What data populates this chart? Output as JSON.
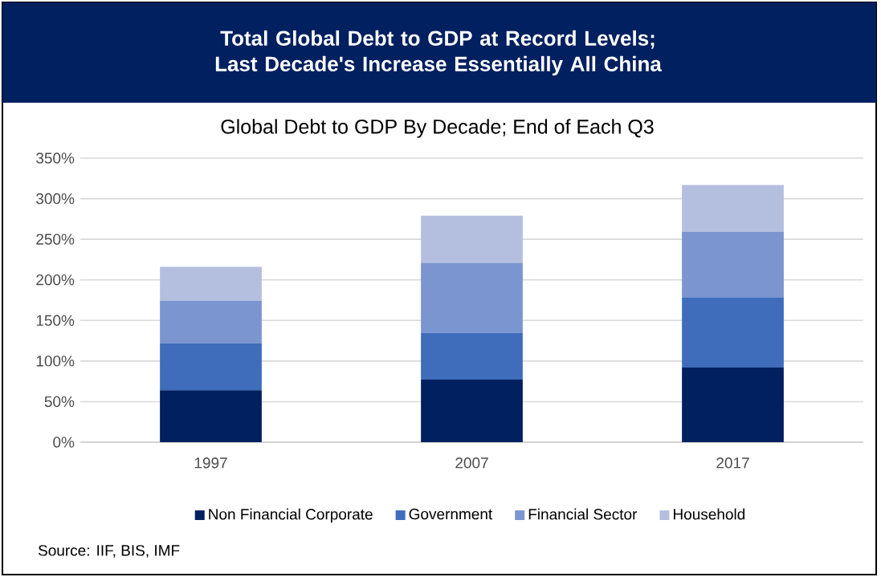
{
  "chart_data": {
    "type": "bar",
    "stacked": true,
    "title": "Total Global Debt to GDP at Record Levels; Last Decade's Increase Essentially All China",
    "subtitle": "Global Debt to GDP By Decade; End of Each Q3",
    "categories": [
      "1997",
      "2007",
      "2017"
    ],
    "series": [
      {
        "name": "Non Financial Corporate",
        "color": "#002060",
        "values": [
          64,
          77,
          92
        ]
      },
      {
        "name": "Government",
        "color": "#3f6dbb",
        "values": [
          58,
          58,
          86
        ]
      },
      {
        "name": "Financial Sector",
        "color": "#7b95d0",
        "values": [
          52,
          86,
          81
        ]
      },
      {
        "name": "Household",
        "color": "#b4bfe0",
        "values": [
          42,
          58,
          58
        ]
      }
    ],
    "ylim": [
      0,
      350
    ],
    "yticks": [
      {
        "value": 0,
        "label": "0%"
      },
      {
        "value": 50,
        "label": "50%"
      },
      {
        "value": 100,
        "label": "100%"
      },
      {
        "value": 150,
        "label": "150%"
      },
      {
        "value": 200,
        "label": "200%"
      },
      {
        "value": 250,
        "label": "250%"
      },
      {
        "value": 300,
        "label": "300%"
      },
      {
        "value": 350,
        "label": "350%"
      }
    ],
    "grid": "y",
    "legend": "bottom",
    "annotations": [
      "Source: IIF, BIS, IMF"
    ]
  }
}
